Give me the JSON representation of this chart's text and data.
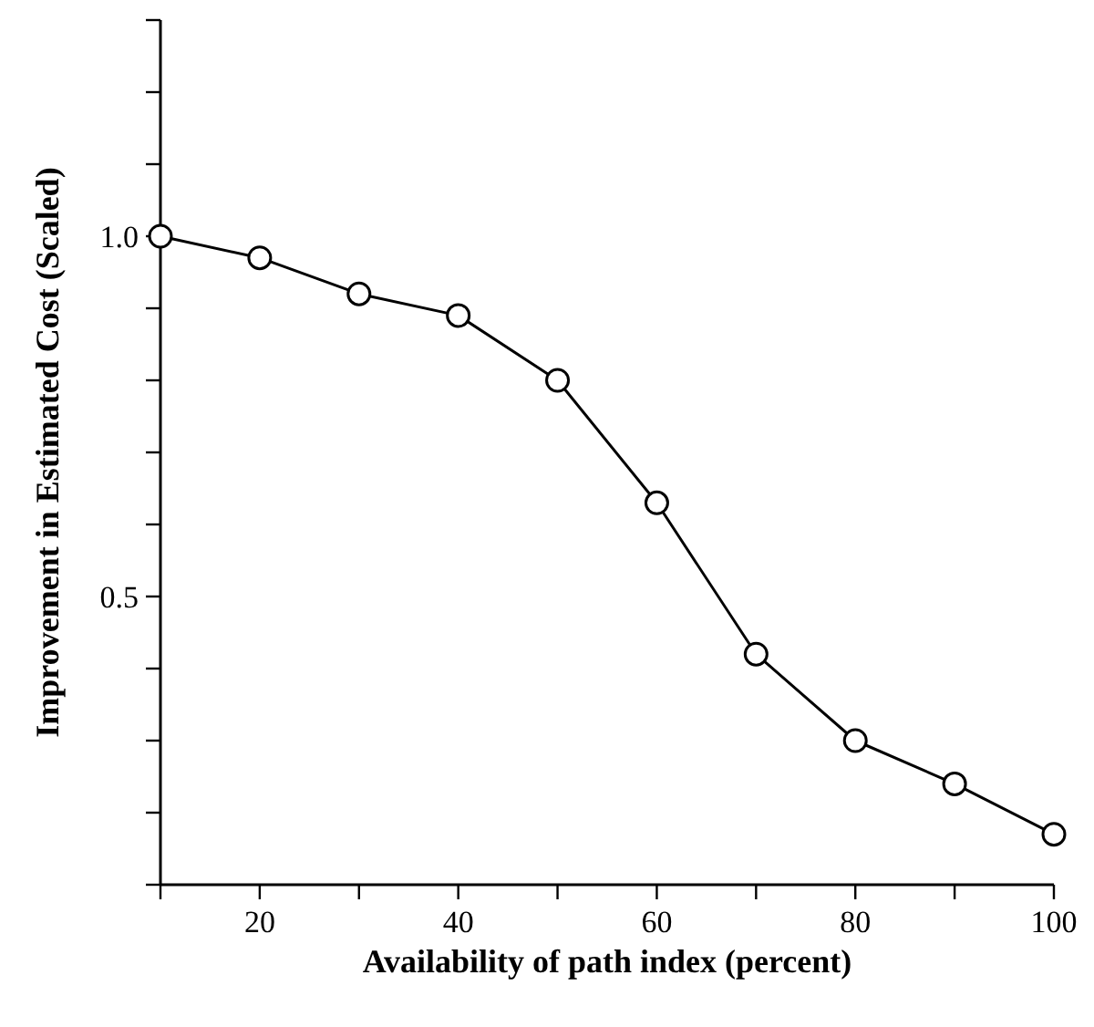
{
  "chart_data": {
    "type": "line",
    "xlabel": "Availability of path index (percent)",
    "ylabel": "Improvement in Estimated Cost (Scaled)",
    "x": [
      10,
      20,
      30,
      40,
      50,
      60,
      70,
      80,
      90,
      100
    ],
    "series": [
      {
        "color": "#000000",
        "values": [
          1.0,
          0.97,
          0.92,
          0.89,
          0.8,
          0.63,
          0.42,
          0.3,
          0.24,
          0.17
        ]
      }
    ],
    "xlim": [
      10,
      100
    ],
    "xticks": [
      {
        "value": 10,
        "label": null
      },
      20,
      {
        "value": 30,
        "label": null
      },
      40,
      {
        "value": 50,
        "label": null
      },
      60,
      {
        "value": 70,
        "label": null
      },
      80,
      {
        "value": 90,
        "label": null
      },
      100
    ],
    "ylim": [
      0.1,
      1.3
    ],
    "yticks": [
      {
        "value": 0.1,
        "label": null
      },
      {
        "value": 0.2,
        "label": null
      },
      {
        "value": 0.3,
        "label": null
      },
      {
        "value": 0.4,
        "label": null
      },
      0.5,
      {
        "value": 0.6,
        "label": null
      },
      {
        "value": 0.7,
        "label": null
      },
      {
        "value": 0.8,
        "label": null
      },
      {
        "value": 0.9,
        "label": null
      },
      {
        "value": 1,
        "label": "1.0"
      },
      {
        "value": 1.1,
        "label": null
      },
      {
        "value": 1.2,
        "label": null
      },
      {
        "value": 1.3,
        "label": null
      }
    ],
    "grid": false,
    "marker": "circle",
    "line_style": "solid"
  }
}
